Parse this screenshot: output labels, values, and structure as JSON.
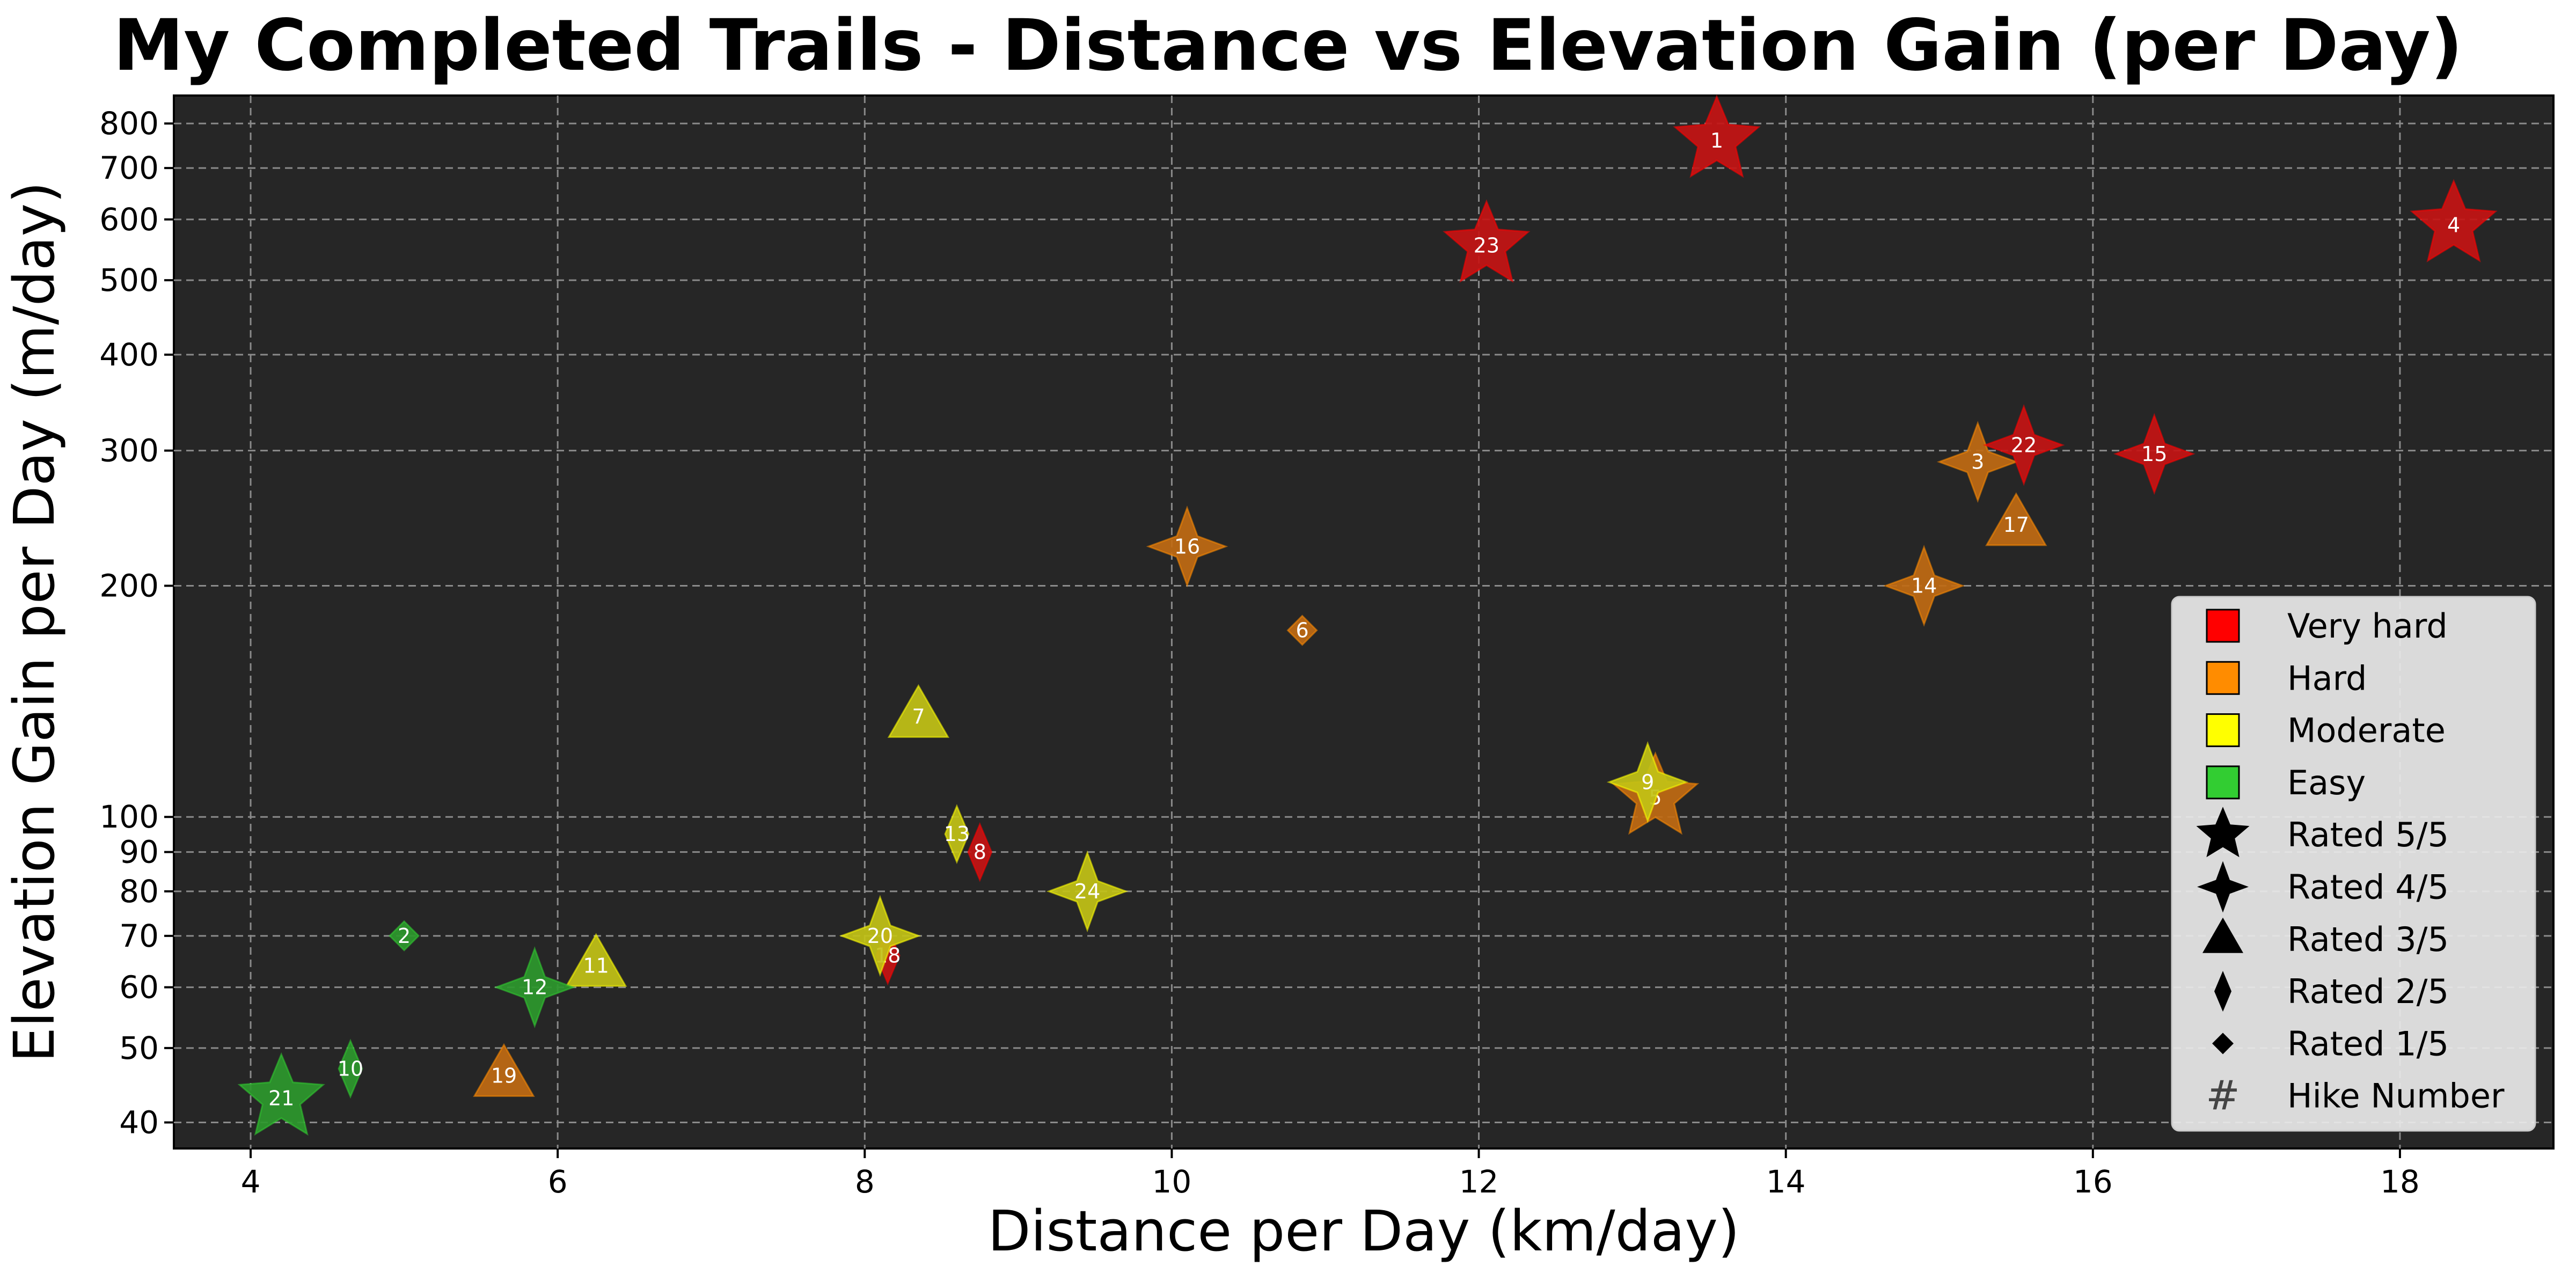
{
  "chart_data": {
    "type": "scatter",
    "title": "My Completed Trails - Distance vs Elevation Gain (per Day)",
    "xlabel": "Distance per Day (km/day)",
    "ylabel": "Elevation Gain per Day (m/day)",
    "xlim": [
      3.5,
      19.0
    ],
    "ylim": [
      37,
      870
    ],
    "yscale": "log",
    "xticks": [
      4,
      6,
      8,
      10,
      12,
      14,
      16,
      18
    ],
    "yticks": [
      40,
      50,
      60,
      70,
      80,
      90,
      100,
      200,
      300,
      400,
      500,
      600,
      700,
      800
    ],
    "grid": true,
    "legend_position": "lower-right",
    "background_color": "#262626",
    "difficulty_colors": {
      "Very hard": "#ff0000",
      "Hard": "#ff8c00",
      "Moderate": "#ffff00",
      "Easy": "#32cd32"
    },
    "point_colors": {
      "Very hard": "#c41414",
      "Hard": "#c06a12",
      "Moderate": "#c2c216",
      "Easy": "#2d982d"
    },
    "rating_markers": {
      "5": "star",
      "4": "four-point-star",
      "3": "triangle",
      "2": "thin-diamond",
      "1": "diamond"
    },
    "legend": [
      {
        "label": "Very hard",
        "kind": "color",
        "key": "Very hard"
      },
      {
        "label": "Hard",
        "kind": "color",
        "key": "Hard"
      },
      {
        "label": "Moderate",
        "kind": "color",
        "key": "Moderate"
      },
      {
        "label": "Easy",
        "kind": "color",
        "key": "Easy"
      },
      {
        "label": "Rated 5/5",
        "kind": "marker",
        "key": "5"
      },
      {
        "label": "Rated 4/5",
        "kind": "marker",
        "key": "4"
      },
      {
        "label": "Rated 3/5",
        "kind": "marker",
        "key": "3"
      },
      {
        "label": "Rated 2/5",
        "kind": "marker",
        "key": "2"
      },
      {
        "label": "Rated 1/5",
        "kind": "marker",
        "key": "1"
      },
      {
        "label": "Hike Number",
        "kind": "hash",
        "key": "#"
      }
    ],
    "points": [
      {
        "hike": "1",
        "x": 13.55,
        "y": 760,
        "difficulty": "Very hard",
        "rating": 5
      },
      {
        "hike": "2",
        "x": 5.0,
        "y": 70,
        "difficulty": "Easy",
        "rating": 1
      },
      {
        "hike": "3",
        "x": 15.25,
        "y": 290,
        "difficulty": "Hard",
        "rating": 4
      },
      {
        "hike": "4",
        "x": 18.35,
        "y": 590,
        "difficulty": "Very hard",
        "rating": 5
      },
      {
        "hike": "5",
        "x": 13.15,
        "y": 106,
        "difficulty": "Hard",
        "rating": 5
      },
      {
        "hike": "6",
        "x": 10.85,
        "y": 175,
        "difficulty": "Hard",
        "rating": 1
      },
      {
        "hike": "7",
        "x": 8.35,
        "y": 135,
        "difficulty": "Moderate",
        "rating": 3
      },
      {
        "hike": "8",
        "x": 8.75,
        "y": 90,
        "difficulty": "Very hard",
        "rating": 2
      },
      {
        "hike": "9",
        "x": 13.1,
        "y": 111,
        "difficulty": "Moderate",
        "rating": 4
      },
      {
        "hike": "10",
        "x": 4.65,
        "y": 47,
        "difficulty": "Easy",
        "rating": 2
      },
      {
        "hike": "11",
        "x": 6.25,
        "y": 64,
        "difficulty": "Moderate",
        "rating": 3
      },
      {
        "hike": "12",
        "x": 5.85,
        "y": 60,
        "difficulty": "Easy",
        "rating": 4
      },
      {
        "hike": "13",
        "x": 8.6,
        "y": 95,
        "difficulty": "Moderate",
        "rating": 2
      },
      {
        "hike": "14",
        "x": 14.9,
        "y": 200,
        "difficulty": "Hard",
        "rating": 4
      },
      {
        "hike": "15",
        "x": 16.4,
        "y": 297,
        "difficulty": "Very hard",
        "rating": 4
      },
      {
        "hike": "16",
        "x": 10.1,
        "y": 225,
        "difficulty": "Hard",
        "rating": 4
      },
      {
        "hike": "17",
        "x": 15.5,
        "y": 240,
        "difficulty": "Hard",
        "rating": 3
      },
      {
        "hike": "18",
        "x": 8.15,
        "y": 66,
        "difficulty": "Very hard",
        "rating": 2
      },
      {
        "hike": "19",
        "x": 5.65,
        "y": 46,
        "difficulty": "Hard",
        "rating": 3
      },
      {
        "hike": "20",
        "x": 8.1,
        "y": 70,
        "difficulty": "Moderate",
        "rating": 4
      },
      {
        "hike": "21",
        "x": 4.2,
        "y": 43,
        "difficulty": "Easy",
        "rating": 5
      },
      {
        "hike": "22",
        "x": 15.55,
        "y": 305,
        "difficulty": "Very hard",
        "rating": 4
      },
      {
        "hike": "23",
        "x": 12.05,
        "y": 555,
        "difficulty": "Very hard",
        "rating": 5
      },
      {
        "hike": "24",
        "x": 9.45,
        "y": 80,
        "difficulty": "Moderate",
        "rating": 4
      }
    ]
  }
}
